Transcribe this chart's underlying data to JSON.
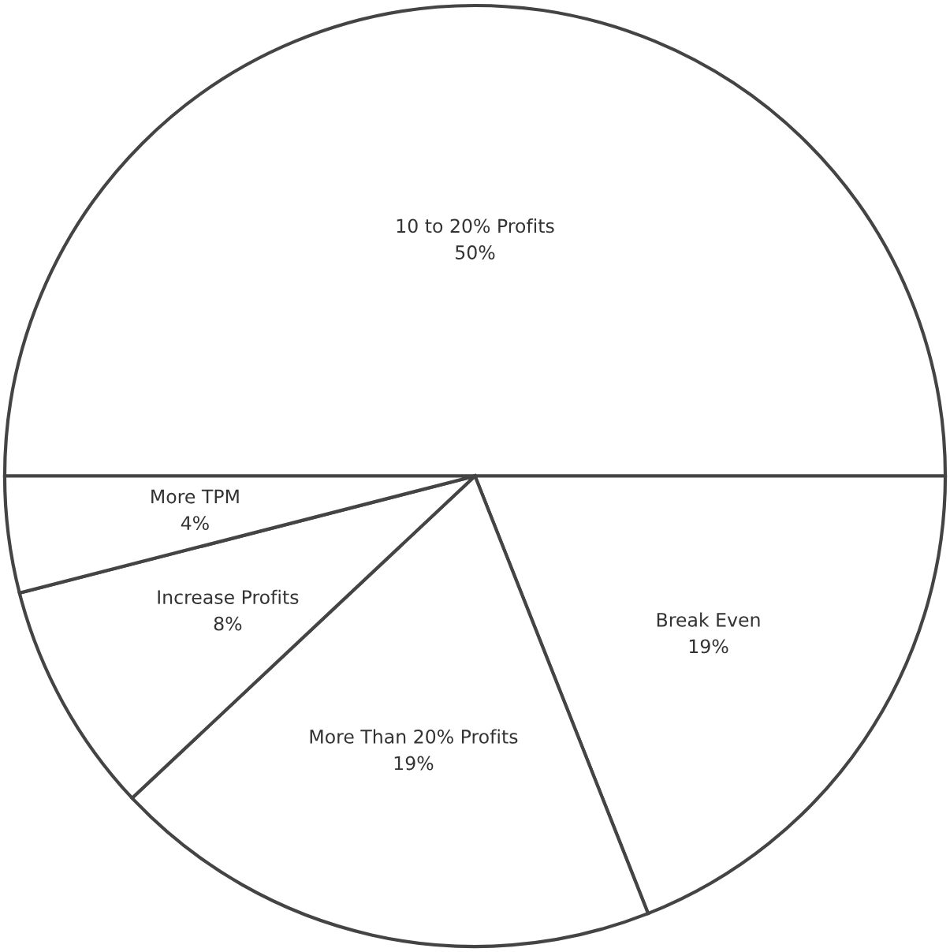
{
  "chart_data": {
    "type": "pie",
    "categories": [
      "10 to 20% Profits",
      "Break Even",
      "More Than 20% Profits",
      "Increase Profits",
      "More TPM"
    ],
    "values": [
      50,
      19,
      19,
      8,
      4
    ],
    "value_labels": [
      "50%",
      "19%",
      "19%",
      "8%",
      "4%"
    ],
    "colors": [
      "#ffffff",
      "#ffffff",
      "#ffffff",
      "#ffffff",
      "#ffffff"
    ]
  }
}
